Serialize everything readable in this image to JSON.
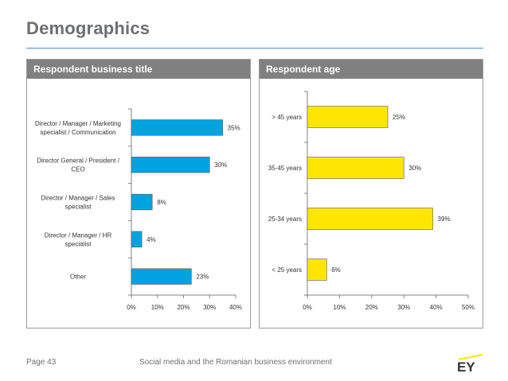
{
  "page": {
    "title": "Demographics",
    "footer_page": "Page 43",
    "footer_text": "Social media and the Romanian business environment",
    "logo_text": "EY"
  },
  "colors": {
    "accent_rule": "#4a8fc8",
    "header_bg": "#808080",
    "bar_blue": "#00a3e0",
    "bar_yellow": "#ffe600",
    "logo_yellow": "#ffe600"
  },
  "chart_data": [
    {
      "type": "bar",
      "orientation": "horizontal",
      "title": "Respondent business title",
      "categories": [
        "Director / Manager / Marketing specialist  / Communication",
        "Director General / President / CEO",
        "Director / Manager / Sales specialist",
        "Director / Manager / HR specialist",
        "Other"
      ],
      "values": [
        35,
        30,
        8,
        4,
        23
      ],
      "value_labels": [
        "35%",
        "30%",
        "8%",
        "4%",
        "23%"
      ],
      "xlim": [
        0,
        40
      ],
      "xticks": [
        "0%",
        "10%",
        "20%",
        "30%",
        "40%"
      ],
      "grid": false,
      "legend": "none"
    },
    {
      "type": "bar",
      "orientation": "horizontal",
      "title": "Respondent age",
      "categories": [
        "> 45 years",
        "35-45 years",
        "25-34 years",
        "< 25 years"
      ],
      "values": [
        25,
        30,
        39,
        6
      ],
      "value_labels": [
        "25%",
        "30%",
        "39%",
        "6%"
      ],
      "xlim": [
        0,
        50
      ],
      "xticks": [
        "0%",
        "10%",
        "20%",
        "30%",
        "40%",
        "50%"
      ],
      "grid": false,
      "legend": "none"
    }
  ]
}
